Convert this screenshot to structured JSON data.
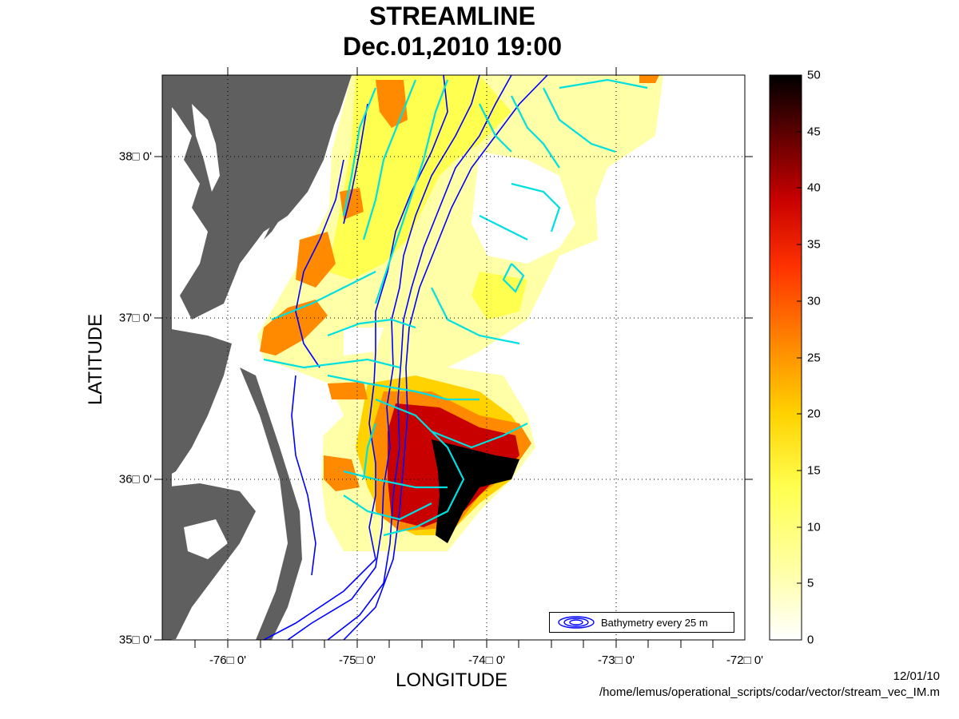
{
  "title": {
    "line1": "STREAMLINE",
    "line2": "Dec.01,2010 19:00"
  },
  "axes": {
    "xlabel": "LONGITUDE",
    "ylabel": "LATITUDE",
    "xticks": [
      "-76□ 0'",
      "-75□ 0'",
      "-74□ 0'",
      "-73□ 0'",
      "-72□ 0'"
    ],
    "yticks": [
      "38□ 0'",
      "37□ 0'",
      "36□ 0'",
      "35□ 0'"
    ],
    "xlim": [
      -76.5,
      -72
    ],
    "ylim": [
      35,
      38.5
    ],
    "grid": "dotted"
  },
  "colorbar": {
    "ticks": [
      "50",
      "45",
      "40",
      "35",
      "30",
      "25",
      "20",
      "15",
      "10",
      "5",
      "0"
    ],
    "range": [
      0,
      50
    ],
    "colormap": [
      "#ffffff",
      "#ffffa8",
      "#ffff50",
      "#ffd200",
      "#ff8a00",
      "#ff3200",
      "#c80000",
      "#5a0000",
      "#000000"
    ]
  },
  "legend": {
    "label": "Bathymetry every 25 m"
  },
  "footer": {
    "date": "12/01/10",
    "path": "/home/lemus/operational_scripts/codar/vector/stream_vec_IM.m"
  },
  "colors": {
    "land": "#5f5f5f",
    "streamline": "#00e0e0",
    "bathymetry": "#0000ff",
    "water": "#ffffff"
  }
}
